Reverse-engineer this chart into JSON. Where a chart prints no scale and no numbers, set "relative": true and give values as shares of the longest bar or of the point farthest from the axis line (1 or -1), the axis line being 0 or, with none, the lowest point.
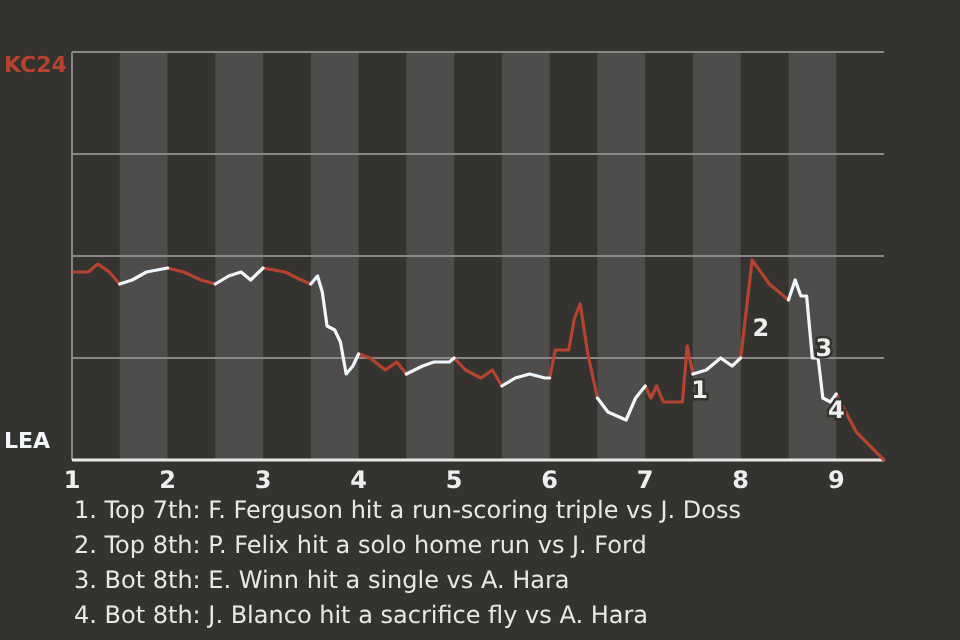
{
  "chart_data": {
    "type": "line",
    "relative": true,
    "marker": "none",
    "line_style": "solid",
    "legend": "left",
    "ref_lines": [
      {
        "axis": "y",
        "value": 0.51,
        "color": "#8a8886"
      },
      {
        "axis": "y",
        "value": 1.02,
        "color": "#8a8886"
      },
      {
        "axis": "y",
        "value": 1.53,
        "color": "#8a8886"
      },
      {
        "axis": "y",
        "value": 2.04,
        "color": "#8a8886"
      }
    ],
    "x": [
      1.02,
      1.17,
      1.27,
      1.39,
      1.5,
      1.63,
      1.78,
      2.0,
      2.17,
      2.35,
      2.5,
      2.64,
      2.77,
      2.87,
      3.0,
      3.23,
      3.4,
      3.5,
      3.57,
      3.62,
      3.67,
      3.75,
      3.81,
      3.87,
      3.94,
      4.0,
      4.12,
      4.28,
      4.4,
      4.5,
      4.67,
      4.79,
      4.95,
      5.0,
      5.12,
      5.28,
      5.4,
      5.5,
      5.64,
      5.79,
      5.95,
      6.0,
      6.06,
      6.2,
      6.26,
      6.32,
      6.4,
      6.5,
      6.61,
      6.8,
      6.9,
      7.0,
      7.06,
      7.12,
      7.19,
      7.39,
      7.44,
      7.5,
      7.64,
      7.79,
      7.91,
      8.0,
      8.12,
      8.3,
      8.5,
      8.57,
      8.63,
      8.69,
      8.75,
      8.81,
      8.86,
      8.94,
      9.0,
      9.21,
      9.5
    ],
    "series": [
      {
        "name": "KC24",
        "color": "#b5432f",
        "values": [
          0.94,
          0.94,
          0.98,
          0.94,
          0.88,
          null,
          null,
          0.96,
          0.94,
          0.9,
          0.88,
          null,
          null,
          null,
          0.96,
          0.94,
          0.9,
          0.88,
          null,
          null,
          null,
          null,
          null,
          null,
          null,
          0.53,
          0.51,
          0.45,
          0.49,
          0.43,
          null,
          null,
          null,
          0.51,
          0.45,
          0.41,
          0.45,
          0.37,
          null,
          null,
          null,
          0.41,
          0.55,
          0.55,
          0.71,
          0.78,
          0.53,
          0.31,
          null,
          null,
          null,
          0.37,
          0.31,
          0.37,
          0.29,
          0.29,
          0.57,
          0.43,
          null,
          null,
          null,
          0.51,
          1,
          0.88,
          0.8,
          null,
          null,
          null,
          null,
          null,
          null,
          null,
          0.33,
          0.14,
          0
        ]
      },
      {
        "name": "LEA",
        "color": "#f0f6fa",
        "values": [
          null,
          null,
          null,
          null,
          0.88,
          0.9,
          0.94,
          0.96,
          null,
          null,
          0.88,
          0.92,
          0.94,
          0.9,
          0.96,
          null,
          null,
          0.88,
          0.92,
          0.84,
          0.67,
          0.65,
          0.59,
          0.43,
          0.47,
          0.53,
          null,
          null,
          null,
          0.43,
          0.47,
          0.49,
          0.49,
          0.51,
          null,
          null,
          null,
          0.37,
          0.41,
          0.43,
          0.41,
          0.41,
          null,
          null,
          null,
          null,
          null,
          0.31,
          0.24,
          0.2,
          0.31,
          0.37,
          null,
          null,
          null,
          null,
          null,
          0.43,
          0.45,
          0.51,
          0.47,
          0.51,
          null,
          null,
          0.8,
          0.9,
          0.82,
          0.82,
          0.51,
          0.51,
          0.31,
          0.29,
          0.33,
          null,
          null
        ]
      }
    ],
    "xlim": [
      1,
      9.5
    ],
    "xticks": [
      1,
      2,
      3,
      4,
      5,
      6,
      7,
      8,
      9
    ],
    "bands": [
      {
        "axis": "x",
        "from": 1.5,
        "to": 2,
        "color": "#4e4d4b"
      },
      {
        "axis": "x",
        "from": 2.5,
        "to": 3,
        "color": "#4e4d4b"
      },
      {
        "axis": "x",
        "from": 3.5,
        "to": 4,
        "color": "#4e4d4b"
      },
      {
        "axis": "x",
        "from": 4.5,
        "to": 5,
        "color": "#4e4d4b"
      },
      {
        "axis": "x",
        "from": 5.5,
        "to": 6,
        "color": "#4e4d4b"
      },
      {
        "axis": "x",
        "from": 6.5,
        "to": 7,
        "color": "#4e4d4b"
      },
      {
        "axis": "x",
        "from": 7.5,
        "to": 8,
        "color": "#4e4d4b"
      },
      {
        "axis": "x",
        "from": 8.5,
        "to": 9,
        "color": "#4e4d4b"
      }
    ],
    "annotations": [
      {
        "text": "1",
        "x": 7.42,
        "y": 0.45
      },
      {
        "text": "2",
        "x": 8.06,
        "y": 0.76
      },
      {
        "text": "3",
        "x": 8.72,
        "y": 0.66
      },
      {
        "text": "4",
        "x": 8.85,
        "y": 0.35
      },
      "1. Top 7th: F. Ferguson hit a run-scoring triple vs J. Doss",
      "2. Top 8th: P. Felix hit a solo home run vs J. Ford",
      "3. Bot 8th: E. Winn hit a single vs A. Hara",
      "4. Bot 8th: J. Blanco hit a sacrifice fly vs A. Hara"
    ]
  }
}
